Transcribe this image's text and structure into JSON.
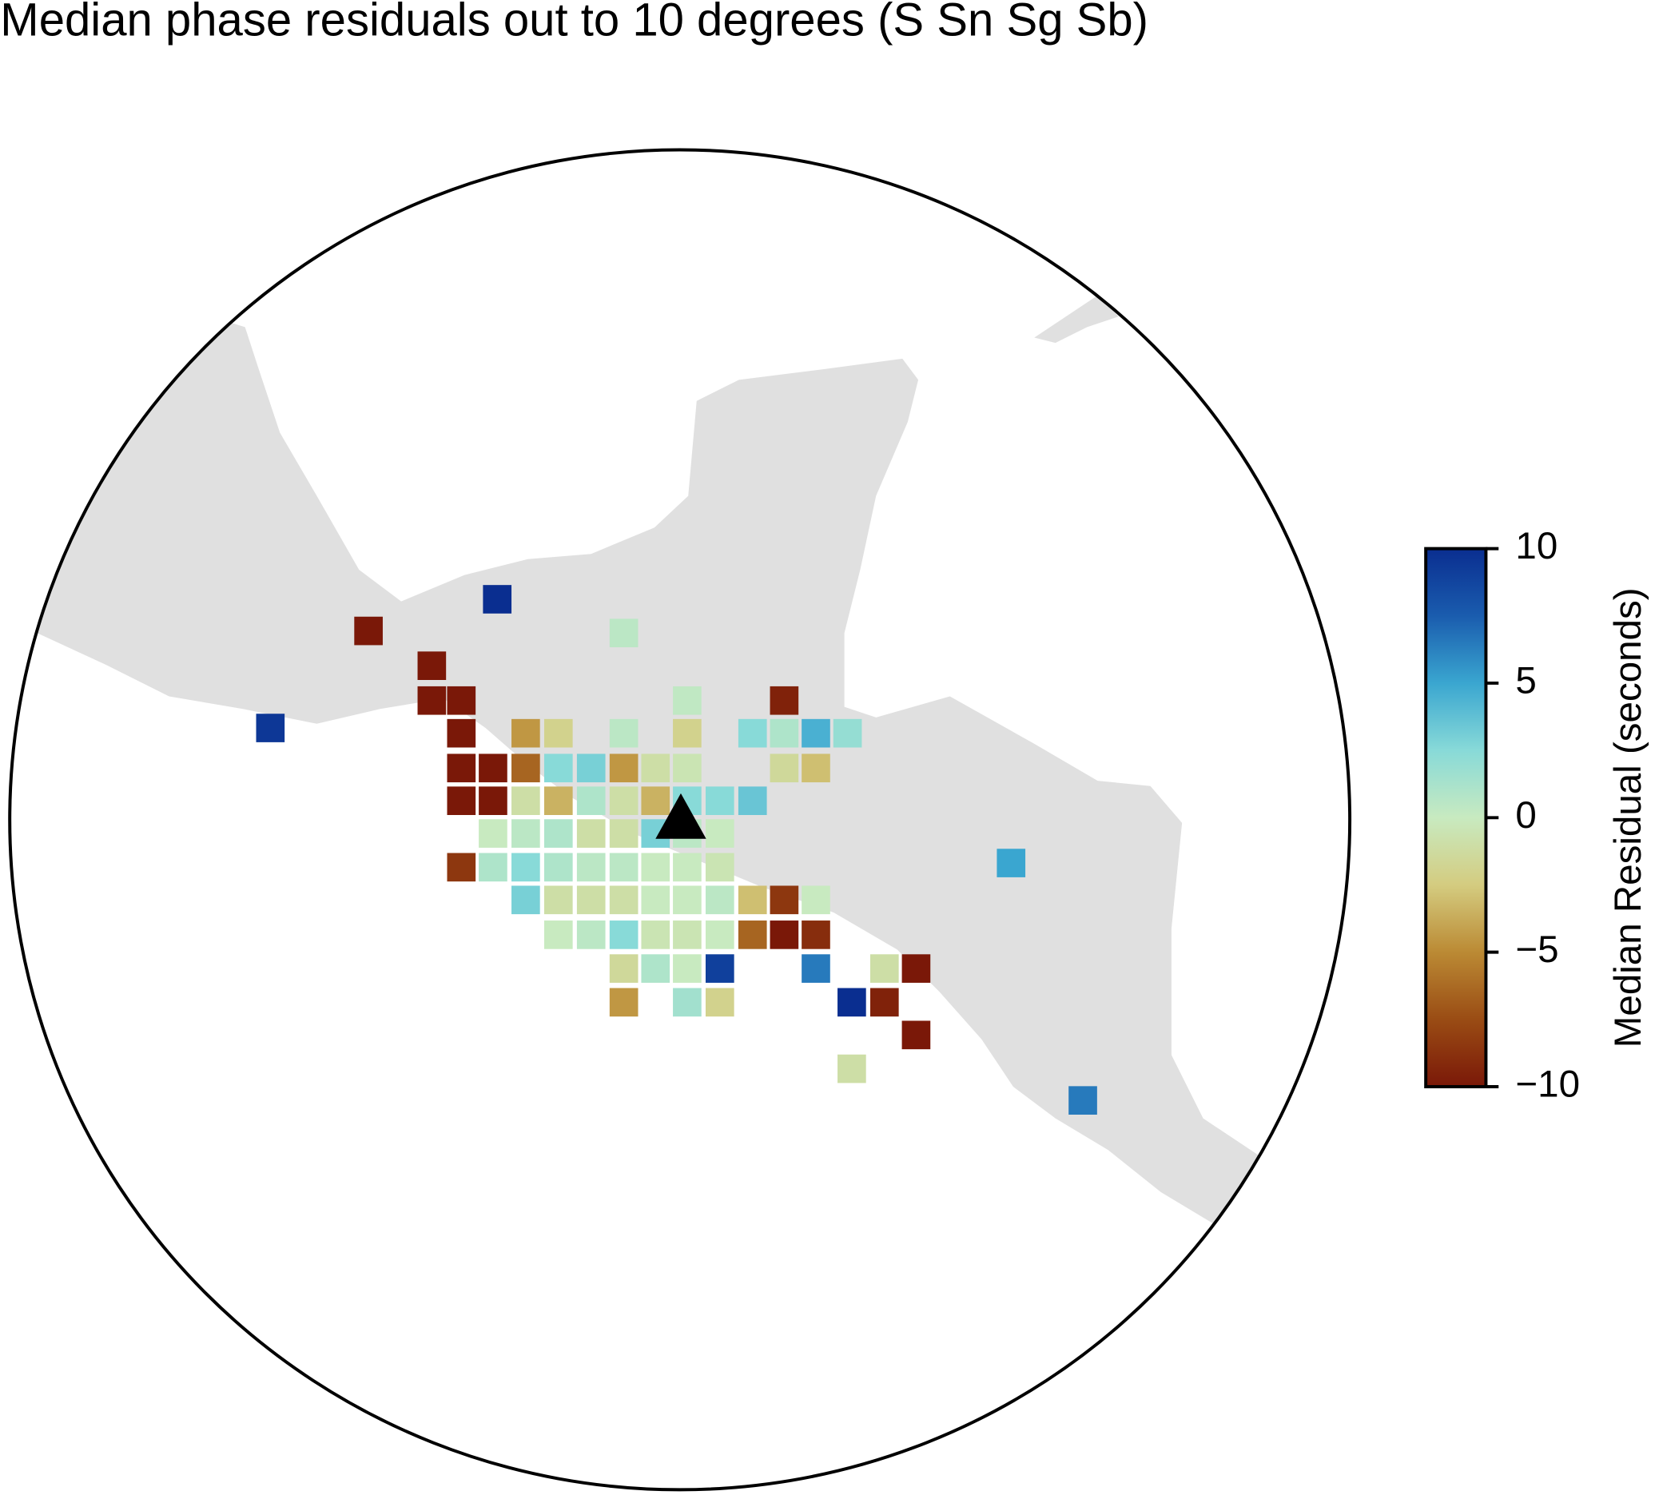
{
  "chart_data": {
    "type": "map",
    "title": "Median phase residuals out to 10 degrees (S Sn Sg Sb)",
    "clabel": "Median Residual (seconds)",
    "clim": [
      -10,
      10
    ],
    "cticks": [
      {
        "value": -10,
        "label": "−10"
      },
      {
        "value": -5,
        "label": "−5"
      },
      0,
      5,
      10
    ],
    "colormap": [
      "#7a1808",
      "#9a4c14",
      "#bb8a34",
      "#d4cc80",
      "#c8eac0",
      "#88dad8",
      "#3aa6d0",
      "#1a5cae",
      "#0a2e90"
    ],
    "values": [
      10,
      -10,
      0.5,
      -10,
      -10,
      -10,
      0.3,
      -9.5,
      -10,
      -4.5,
      -2,
      0.5,
      -2,
      2.5,
      1,
      4.5,
      2,
      -10,
      -10,
      -6.5,
      2.5,
      3,
      -4.5,
      -1,
      -0.5,
      -1.5,
      -3,
      -10,
      -10,
      -1,
      -3.5,
      1,
      -1,
      -3.5,
      2.5,
      2.5,
      3.5,
      0,
      0.5,
      1,
      -1,
      -1,
      3,
      0.5,
      0,
      -8.5,
      1,
      2.5,
      1,
      0.5,
      0.5,
      0,
      0,
      -0.5,
      3,
      -1,
      -1,
      -1,
      0,
      0,
      0.5,
      -3,
      -8.5,
      0,
      0,
      0.5,
      2.5,
      -0.5,
      -0.5,
      0,
      -6.5,
      -10,
      -9,
      -1.5,
      1,
      0,
      9,
      6.5,
      -1,
      -10,
      -4.5,
      1.5,
      -2,
      10,
      -9.5,
      -10,
      -1,
      6.5,
      9.5,
      5
    ]
  }
}
